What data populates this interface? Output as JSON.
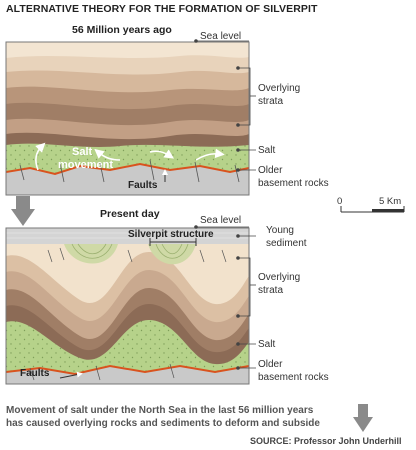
{
  "title": "ALTERNATIVE THEORY FOR THE FORMATION OF SILVERPIT",
  "panels": {
    "past": {
      "era_label": "56 Million years ago",
      "labels": {
        "sea_level": "Sea level",
        "overlying_strata_1": "Overlying",
        "overlying_strata_2": "strata",
        "salt": "Salt",
        "older_1": "Older",
        "older_2": "basement rocks",
        "salt_movement_1": "Salt",
        "salt_movement_2": "movement",
        "faults": "Faults"
      }
    },
    "present": {
      "era_label": "Present day",
      "labels": {
        "sea_level": "Sea level",
        "young_sediment_1": "Young",
        "young_sediment_2": "sediment",
        "silverpit_structure": "Silverpit structure",
        "overlying_strata_1": "Overlying",
        "overlying_strata_2": "strata",
        "salt": "Salt",
        "older_1": "Older",
        "older_2": "basement rocks",
        "faults": "Faults"
      }
    }
  },
  "scale_bar": {
    "start": "0",
    "end": "5 Km"
  },
  "caption_1": "Movement of salt under the North Sea in the last 56 million years",
  "caption_2": "has caused overlying rocks and sediments to deform and subside",
  "source": "SOURCE: Professor John Underhill",
  "colors": {
    "strata_light": "#f2e2cc",
    "strata_mid": "#dcc0a4",
    "strata_dark": "#a07e66",
    "salt": "#b6d28a",
    "basement": "#c9c9c9",
    "fault_line": "#d9531e",
    "arrow": "#888888"
  }
}
